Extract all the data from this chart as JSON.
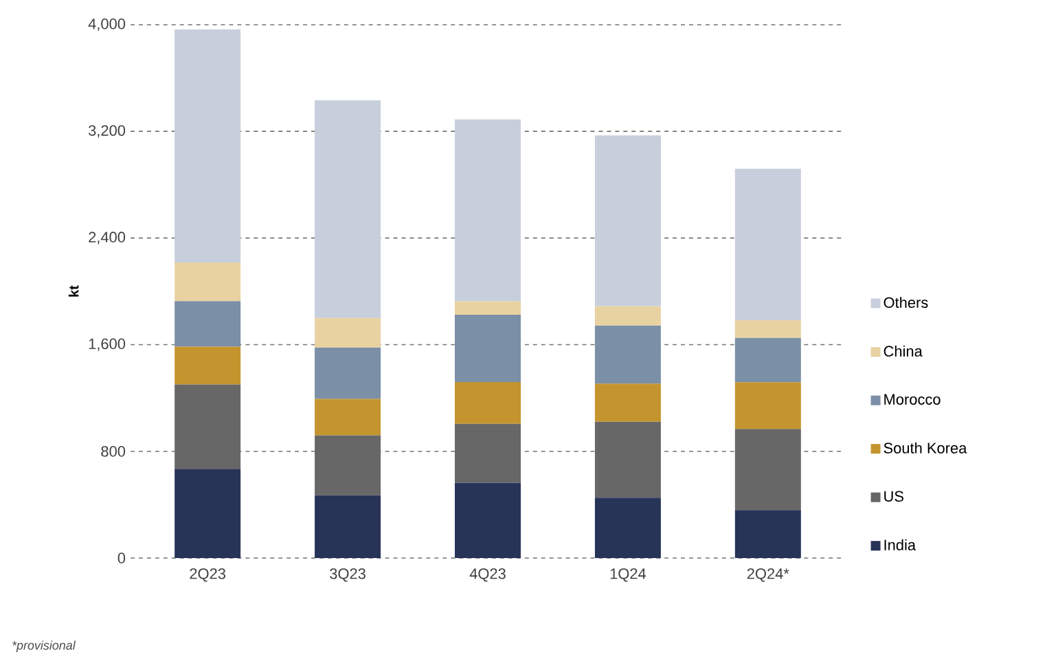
{
  "chart_data": {
    "type": "bar",
    "stacked": true,
    "ylabel": "kt",
    "categories": [
      "2Q23",
      "3Q23",
      "4Q23",
      "1Q24",
      "2Q24*"
    ],
    "series": [
      {
        "name": "India",
        "color": "#283358",
        "values": [
          668,
          470,
          563,
          452,
          360
        ]
      },
      {
        "name": "US",
        "color": "#676767",
        "values": [
          634,
          450,
          443,
          570,
          608
        ]
      },
      {
        "name": "South Korea",
        "color": "#c4952e",
        "values": [
          283,
          273,
          313,
          286,
          350
        ]
      },
      {
        "name": "Morocco",
        "color": "#7b8fa6",
        "values": [
          341,
          386,
          505,
          435,
          333
        ]
      },
      {
        "name": "China",
        "color": "#e9d2a2",
        "values": [
          290,
          221,
          102,
          146,
          132
        ]
      },
      {
        "name": "Others",
        "color": "#c7cfdc",
        "values": [
          1749,
          1633,
          1364,
          1281,
          1137
        ]
      }
    ],
    "ylim": [
      0,
      4000
    ],
    "yticks": [
      0,
      800,
      {
        "value": 1600,
        "label": "1,600"
      },
      {
        "value": 2400,
        "label": "2,400"
      },
      {
        "value": 3200,
        "label": "3,200"
      },
      {
        "value": 4000,
        "label": "4,000"
      }
    ],
    "grid": "y",
    "legend": "right",
    "annotations": [
      "*provisional"
    ]
  }
}
